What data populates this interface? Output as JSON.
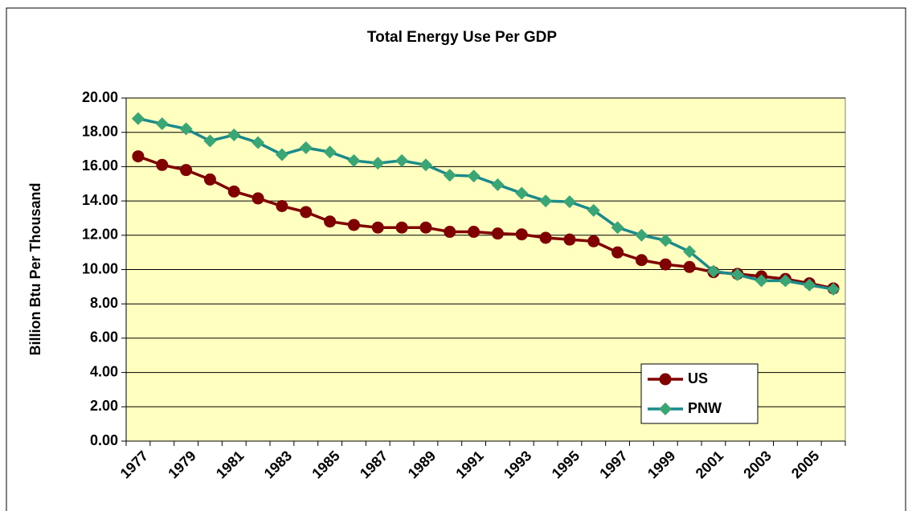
{
  "chart_data": {
    "type": "line",
    "title": "Total Energy Use Per GDP",
    "y_label": "Billion Btu Per Thousand",
    "categories": [
      "1977",
      null,
      "1979",
      null,
      "1981",
      null,
      "1983",
      null,
      "1985",
      null,
      "1987",
      null,
      "1989",
      null,
      "1991",
      null,
      "1993",
      null,
      "1995",
      null,
      "1997",
      null,
      "1999",
      null,
      "2001",
      null,
      "2003",
      null,
      "2005",
      null
    ],
    "series": [
      {
        "name": "US",
        "color": "#800000",
        "marker": "circle",
        "values": [
          16.6,
          16.1,
          15.8,
          15.25,
          14.55,
          14.15,
          13.7,
          13.35,
          12.8,
          12.6,
          12.45,
          12.45,
          12.45,
          12.2,
          12.2,
          12.1,
          12.05,
          11.85,
          11.75,
          11.65,
          11.0,
          10.55,
          10.3,
          10.15,
          9.85,
          9.75,
          9.6,
          9.45,
          9.2,
          8.9
        ]
      },
      {
        "name": "PNW",
        "color": "#1b8a8a",
        "marker_color": "#3aa676",
        "marker": "diamond",
        "values": [
          18.8,
          18.5,
          18.2,
          17.5,
          17.85,
          17.4,
          16.7,
          17.1,
          16.85,
          16.35,
          16.2,
          16.35,
          16.1,
          15.5,
          15.45,
          14.95,
          14.45,
          14.0,
          13.95,
          13.45,
          12.45,
          12.0,
          11.7,
          11.05,
          9.9,
          9.7,
          9.35,
          9.35,
          9.1,
          8.85
        ]
      }
    ],
    "ylim": [
      0,
      20
    ],
    "yticks": [
      {
        "value": 0,
        "label": "0.00"
      },
      {
        "value": 2,
        "label": "2.00"
      },
      {
        "value": 4,
        "label": "4.00"
      },
      {
        "value": 6,
        "label": "6.00"
      },
      {
        "value": 8,
        "label": "8.00"
      },
      {
        "value": 10,
        "label": "10.00"
      },
      {
        "value": 12,
        "label": "12.00"
      },
      {
        "value": 14,
        "label": "14.00"
      },
      {
        "value": 16,
        "label": "16.00"
      },
      {
        "value": 18,
        "label": "18.00"
      },
      {
        "value": 20,
        "label": "20.00"
      }
    ],
    "grid": true,
    "plot_background": "#ffffc0",
    "legend": "lower right"
  }
}
